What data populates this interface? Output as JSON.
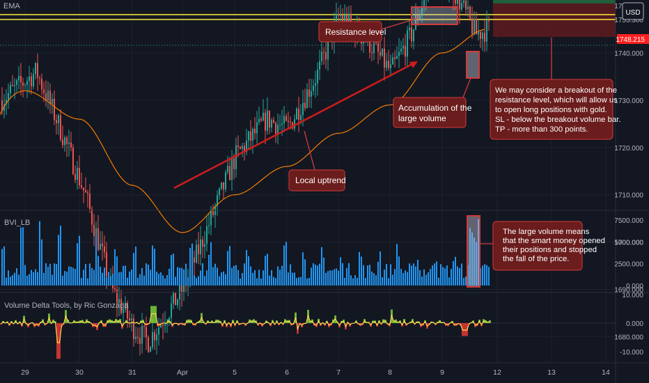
{
  "colors": {
    "background": "#131722",
    "grid": "#1e2230",
    "text": "#b2b5be",
    "up": "#26a69a",
    "down": "#ef5350",
    "ema": "#f57c00",
    "resistance": "#ffeb3b",
    "annotation_fill": "#6b1c1c",
    "annotation_border": "#d23c3c",
    "volume": "#2196f3",
    "delta_up": "#7cd03a",
    "delta_down": "#e53935",
    "delta_line": "#ffd54f",
    "last_price_bg": "#ff1f1f"
  },
  "price_pane": {
    "indicator_label": "EMA",
    "currency_badge": "USD",
    "last_price_label": "1748.215",
    "partly_hidden_labels": [
      "1760.000",
      "1755.300"
    ],
    "y_ticks": [
      "1740.000",
      "1730.000",
      "1720.000",
      "1710.000",
      "1700.000",
      "1690.000",
      "1680.000"
    ]
  },
  "volume_pane": {
    "label": "BVI_LB",
    "y_ticks": [
      "7500.000",
      "5000.000",
      "2500.000",
      "0.000"
    ]
  },
  "delta_pane": {
    "label": "Volume Delta Tools, by Ric Gonzaga",
    "y_ticks": [
      "10.000",
      "0.000",
      "-10.000"
    ]
  },
  "x_axis": {
    "labels": [
      "29",
      "30",
      "31",
      "Apr",
      "5",
      "6",
      "7",
      "8",
      "9",
      "12",
      "13",
      "14"
    ]
  },
  "annotations": {
    "resistance": "Resistance level",
    "accumulation": [
      "Accumulation of the",
      "large volume"
    ],
    "breakout": [
      "We may consider a breakout of the",
      "resistance level, which will allow us",
      "to open long positions with gold.",
      "SL - below the breakout volume bar.",
      "TP - more than 300 points."
    ],
    "uptrend": "Local uptrend",
    "smart_money": [
      "The large volume means",
      "that the smart money opened",
      "their positions and stopped",
      "the fall of the price."
    ]
  },
  "chart_data": [
    {
      "type": "line",
      "pane": "price",
      "y_range": [
        1673,
        1765
      ],
      "resistance_levels": [
        1760.0,
        1755.3
      ],
      "last_price": 1748.215,
      "series": [
        {
          "name": "EMA",
          "x": [
            "29",
            "30",
            "31",
            "Apr",
            "5",
            "6",
            "7",
            "8",
            "9",
            "9.8"
          ],
          "values": [
            1732,
            1726,
            1712,
            1702,
            1710,
            1716,
            1723,
            1729,
            1740,
            1745
          ]
        }
      ],
      "close_path": {
        "x": [
          "28.9",
          "29.2",
          "29.6",
          "30.1",
          "30.6",
          "31",
          "31.3",
          "Apr",
          "5",
          "5.6",
          "6",
          "6.6",
          "7",
          "7.6",
          "8",
          "8.4",
          "8.8",
          "9",
          "9.3",
          "9.6",
          "9.8"
        ],
        "values": [
          1730,
          1736,
          1725,
          1710,
          1690,
          1682,
          1679,
          1690,
          1718,
          1726,
          1724,
          1736,
          1748,
          1742,
          1736,
          1744,
          1757,
          1757,
          1751,
          1744,
          1745
        ]
      }
    },
    {
      "type": "bar",
      "pane": "volume",
      "name": "BVI_LB",
      "y_range": [
        0,
        8000
      ],
      "highlighted_bar": 7800,
      "peak_values": [
        7600,
        7800,
        7200,
        7100,
        5900,
        6000,
        6100,
        6200,
        6200,
        6900,
        5800,
        5400,
        4600,
        4700,
        5400,
        4700,
        5500,
        4600,
        4500,
        4600,
        5000,
        3800,
        4200,
        4600,
        7800
      ]
    },
    {
      "type": "area",
      "pane": "delta",
      "name": "Volume Delta Tools, by Ric Gonzaga",
      "y_range": [
        -14,
        12
      ],
      "notable_extremes": [
        {
          "x": "29.6",
          "value": -12.5
        },
        {
          "x": "31.4",
          "value": 6.0
        },
        {
          "x": "9.4",
          "value": -4.5
        }
      ]
    }
  ]
}
